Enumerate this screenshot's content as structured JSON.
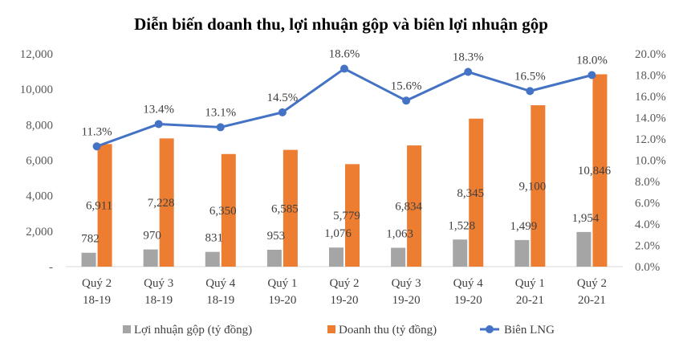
{
  "chart_data": {
    "type": "bar",
    "title": "Diễn biến doanh thu, lợi nhuận gộp và biên lợi nhuận gộp",
    "categories": [
      [
        "Quý 2",
        "18-19"
      ],
      [
        "Quý 3",
        "18-19"
      ],
      [
        "Quý 4",
        "18-19"
      ],
      [
        "Quý 1",
        "19-20"
      ],
      [
        "Quý 2",
        "19-20"
      ],
      [
        "Quý 3",
        "19-20"
      ],
      [
        "Quý 4",
        "19-20"
      ],
      [
        "Quý 1",
        "20-21"
      ],
      [
        "Quý 2",
        "20-21"
      ]
    ],
    "series": [
      {
        "name": "Lợi nhuận gộp (tỷ đồng)",
        "type": "bar",
        "axis": "left",
        "color": "#A5A5A5",
        "values": [
          782,
          970,
          831,
          953,
          1076,
          1063,
          1528,
          1499,
          1954
        ],
        "labels": [
          "782",
          "970",
          "831",
          "953",
          "1,076",
          "1,063",
          "1,528",
          "1,499",
          "1,954"
        ]
      },
      {
        "name": "Doanh thu (tỷ đồng)",
        "type": "bar",
        "axis": "left",
        "color": "#ED7D31",
        "values": [
          6911,
          7228,
          6350,
          6585,
          5779,
          6834,
          8345,
          9100,
          10846
        ],
        "labels": [
          "6,911",
          "7,228",
          "6,350",
          "6,585",
          "5,779",
          "6,834",
          "8,345",
          "9,100",
          "10,846"
        ]
      },
      {
        "name": "Biên LNG",
        "type": "line",
        "axis": "right",
        "color": "#4472C4",
        "values": [
          11.3,
          13.4,
          13.1,
          14.5,
          18.6,
          15.6,
          18.3,
          16.5,
          18.0
        ],
        "labels": [
          "11.3%",
          "13.4%",
          "13.1%",
          "14.5%",
          "18.6%",
          "15.6%",
          "18.3%",
          "16.5%",
          "18.0%"
        ]
      }
    ],
    "y_left": {
      "range": [
        0,
        12000
      ],
      "ticks": [
        0,
        2000,
        4000,
        6000,
        8000,
        10000,
        12000
      ],
      "tick_labels": [
        "-",
        "2,000",
        "4,000",
        "6,000",
        "8,000",
        "10,000",
        "12,000"
      ]
    },
    "y_right": {
      "range": [
        0,
        20
      ],
      "ticks": [
        0,
        2,
        4,
        6,
        8,
        10,
        12,
        14,
        16,
        18,
        20
      ],
      "tick_labels": [
        "0.0%",
        "2.0%",
        "4.0%",
        "6.0%",
        "8.0%",
        "10.0%",
        "12.0%",
        "14.0%",
        "16.0%",
        "18.0%",
        "20.0%"
      ]
    },
    "grid": false,
    "legend_position": "bottom"
  }
}
